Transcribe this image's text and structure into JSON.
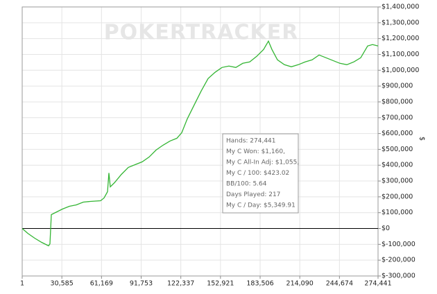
{
  "chart_data": {
    "type": "line",
    "watermark": "POKERTRACKER",
    "y_axis_label": "$",
    "x": [
      1,
      4281,
      9631,
      14981,
      20331,
      21401,
      22471,
      25681,
      31031,
      36381,
      41731,
      47081,
      52431,
      60456,
      63131,
      65806,
      66876,
      67946,
      71156,
      76506,
      81856,
      87206,
      92556,
      97906,
      103256,
      108606,
      113956,
      119306,
      123051,
      127331,
      132681,
      138031,
      143381,
      148731,
      154081,
      159431,
      164781,
      170131,
      175481,
      180831,
      186181,
      189926,
      192601,
      196881,
      202231,
      207581,
      212931,
      218281,
      223631,
      228981,
      234331,
      239681,
      245031,
      250381,
      255731,
      261081,
      266431,
      270176,
      274441
    ],
    "series": [
      {
        "color": "#33b533",
        "values": [
          0,
          -30700,
          -61400,
          -87700,
          -109600,
          -96500,
          87700,
          100900,
          122800,
          140400,
          149100,
          166700,
          171100,
          175400,
          193000,
          232500,
          350900,
          263200,
          289500,
          342100,
          386000,
          403500,
          421100,
          451800,
          495600,
          526300,
          552600,
          570200,
          605300,
          693000,
          780800,
          868500,
          947400,
          986900,
          1017600,
          1026300,
          1017600,
          1043900,
          1052600,
          1087700,
          1131600,
          1184200,
          1131600,
          1065800,
          1035100,
          1021900,
          1035100,
          1052600,
          1065800,
          1096500,
          1079000,
          1061400,
          1043900,
          1035100,
          1052600,
          1079000,
          1153500,
          1162300,
          1153500
        ]
      }
    ],
    "xlim": [
      1,
      274441
    ],
    "xticks": [
      1,
      {
        "value": 30585,
        "label": "30,585"
      },
      {
        "value": 61169,
        "label": "61,169"
      },
      {
        "value": 91753,
        "label": "91,753"
      },
      {
        "value": 122337,
        "label": "122,337"
      },
      {
        "value": 152921,
        "label": "152,921"
      },
      {
        "value": 183506,
        "label": "183,506"
      },
      {
        "value": 214090,
        "label": "214,090"
      },
      {
        "value": 244674,
        "label": "244,674"
      },
      {
        "value": 274441,
        "label": "274,441"
      }
    ],
    "ylim": [
      -300000,
      1400000
    ],
    "yticks": [
      {
        "value": -300000,
        "label": "$-300,000"
      },
      {
        "value": -200000,
        "label": "$-200,000"
      },
      {
        "value": -100000,
        "label": "$-100,000"
      },
      {
        "value": 0,
        "label": "$0"
      },
      {
        "value": 100000,
        "label": "$100,000"
      },
      {
        "value": 200000,
        "label": "$200,000"
      },
      {
        "value": 300000,
        "label": "$300,000"
      },
      {
        "value": 400000,
        "label": "$400,000"
      },
      {
        "value": 500000,
        "label": "$500,000"
      },
      {
        "value": 600000,
        "label": "$600,000"
      },
      {
        "value": 700000,
        "label": "$700,000"
      },
      {
        "value": 800000,
        "label": "$800,000"
      },
      {
        "value": 900000,
        "label": "$900,000"
      },
      {
        "value": 1000000,
        "label": "$1,000,000"
      },
      {
        "value": 1100000,
        "label": "$1,100,000"
      },
      {
        "value": 1200000,
        "label": "$1,200,000"
      },
      {
        "value": 1300000,
        "label": "$1,300,000"
      },
      {
        "value": 1400000,
        "label": "$1,400,000"
      }
    ],
    "grid": true,
    "zero_line": true,
    "annotation": [
      "Hands: 274,441",
      "My C Won: $1,160,",
      "My C All-In Adj: $1,055,",
      "My C / 100: $423.02",
      "BB/100: 5.64",
      "Days Played: 217",
      "My C / Day: $5,349.91"
    ]
  }
}
